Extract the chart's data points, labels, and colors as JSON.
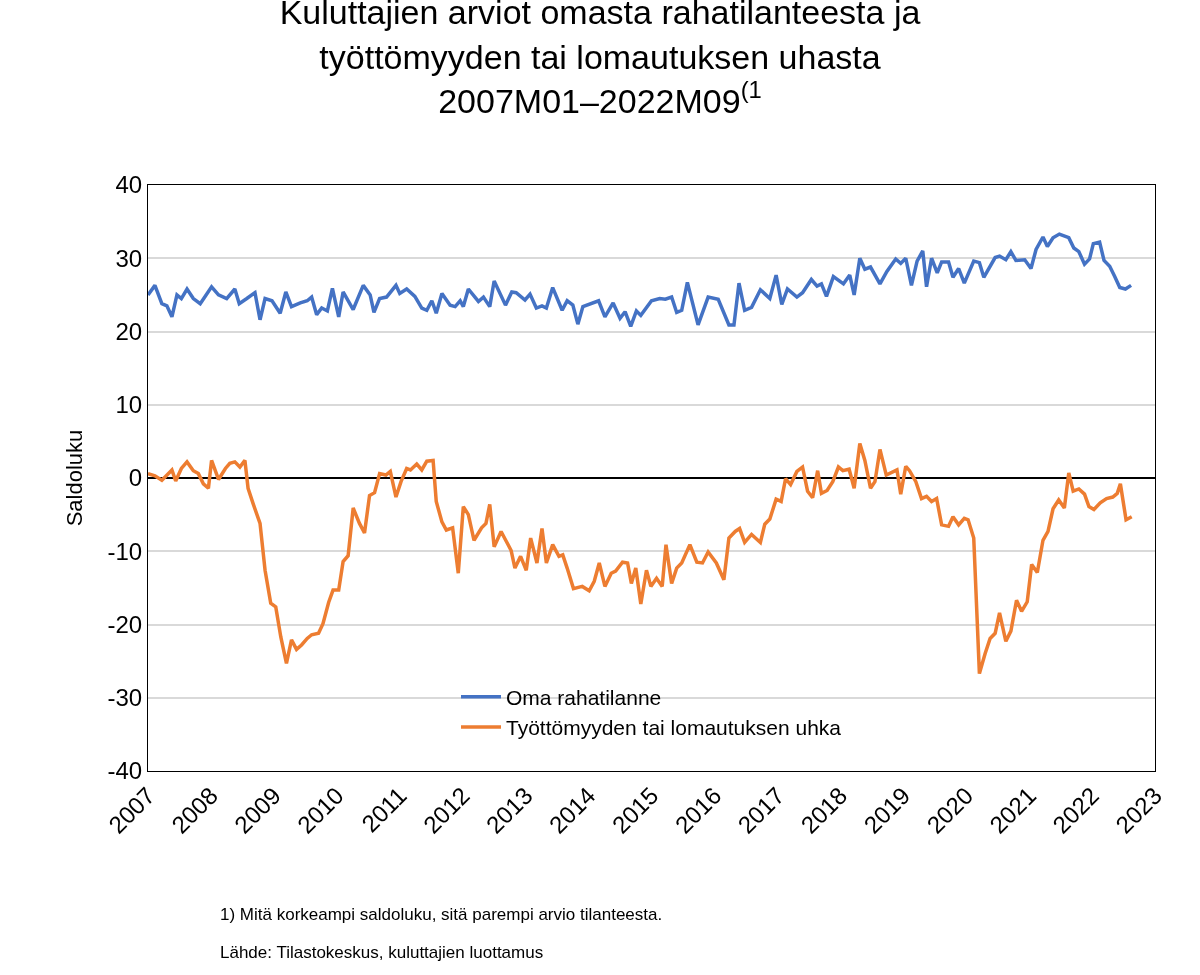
{
  "chart_data": {
    "type": "line",
    "title": "Kuluttajien arviot omasta rahatilanteesta ja\ntyöttömyyden tai lomautuksen uhasta\n2007M01–2022M09$^{(1}$",
    "ylabel": "Saldoluku",
    "xlim": [
      2007,
      2023
    ],
    "xticks": [
      2007,
      2008,
      2009,
      2010,
      2011,
      2012,
      2013,
      2014,
      2015,
      2016,
      2017,
      2018,
      2019,
      2020,
      2021,
      2022,
      2023
    ],
    "ylim": [
      -40,
      40
    ],
    "yticks": [
      -40,
      -30,
      -20,
      -10,
      0,
      10,
      20,
      30,
      40
    ],
    "grid": "y",
    "legend": "bottom",
    "series": [
      {
        "name": "Oma rahatilanne",
        "color": "#4472c4",
        "x": [
          2007.0,
          2007.11,
          2007.22,
          2007.3,
          2007.38,
          2007.46,
          2007.53,
          2007.62,
          2007.72,
          2007.83,
          2007.91,
          2008.01,
          2008.12,
          2008.25,
          2008.38,
          2008.45,
          2008.57,
          2008.7,
          2008.78,
          2008.86,
          2008.97,
          2009.1,
          2009.19,
          2009.28,
          2009.42,
          2009.53,
          2009.6,
          2009.68,
          2009.76,
          2009.85,
          2009.93,
          2010.03,
          2010.1,
          2010.26,
          2010.42,
          2010.53,
          2010.59,
          2010.68,
          2010.79,
          2010.94,
          2011.0,
          2011.11,
          2011.24,
          2011.35,
          2011.43,
          2011.51,
          2011.58,
          2011.67,
          2011.8,
          2011.88,
          2011.96,
          2012.01,
          2012.09,
          2012.25,
          2012.33,
          2012.43,
          2012.5,
          2012.68,
          2012.78,
          2012.85,
          2012.99,
          2013.07,
          2013.17,
          2013.26,
          2013.33,
          2013.43,
          2013.58,
          2013.66,
          2013.75,
          2013.83,
          2013.91,
          2014.16,
          2014.26,
          2014.39,
          2014.5,
          2014.58,
          2014.67,
          2014.76,
          2014.83,
          2015.0,
          2015.13,
          2015.22,
          2015.32,
          2015.4,
          2015.48,
          2015.57,
          2015.74,
          2015.9,
          2016.06,
          2016.23,
          2016.31,
          2016.39,
          2016.48,
          2016.59,
          2016.73,
          2016.88,
          2016.98,
          2017.07,
          2017.16,
          2017.31,
          2017.4,
          2017.54,
          2017.63,
          2017.7,
          2017.78,
          2017.89,
          2018.05,
          2018.15,
          2018.22,
          2018.31,
          2018.39,
          2018.48,
          2018.63,
          2018.74,
          2018.88,
          2018.96,
          2019.04,
          2019.13,
          2019.22,
          2019.31,
          2019.37,
          2019.45,
          2019.54,
          2019.61,
          2019.72,
          2019.79,
          2019.88,
          2019.97,
          2020.12,
          2020.21,
          2020.28,
          2020.46,
          2020.53,
          2020.63,
          2020.71,
          2020.79,
          2020.93,
          2021.03,
          2021.11,
          2021.22,
          2021.29,
          2021.38,
          2021.48,
          2021.63,
          2021.71,
          2021.79,
          2021.88,
          2021.96,
          2022.02,
          2022.12,
          2022.19,
          2022.28,
          2022.36,
          2022.44,
          2022.53,
          2022.62
        ],
        "values": [
          25.0,
          26.3,
          23.8,
          23.5,
          22.0,
          25.0,
          24.5,
          25.8,
          24.5,
          23.8,
          24.8,
          26.1,
          25.0,
          24.5,
          25.8,
          23.8,
          24.5,
          25.3,
          21.6,
          24.5,
          24.2,
          22.5,
          25.4,
          23.4,
          23.9,
          24.2,
          24.7,
          22.3,
          23.2,
          22.8,
          25.9,
          22.0,
          25.4,
          23.0,
          26.3,
          25.0,
          22.6,
          24.5,
          24.7,
          26.3,
          25.2,
          25.8,
          24.8,
          23.2,
          22.9,
          24.2,
          22.5,
          25.2,
          23.6,
          23.4,
          24.2,
          23.4,
          25.8,
          24.1,
          24.7,
          23.4,
          26.9,
          23.6,
          25.4,
          25.3,
          24.3,
          25.1,
          23.2,
          23.5,
          23.2,
          26.0,
          22.9,
          24.2,
          23.6,
          21.0,
          23.4,
          24.2,
          22.0,
          23.9,
          21.8,
          22.7,
          20.7,
          22.8,
          22.2,
          24.2,
          24.5,
          24.4,
          24.7,
          22.6,
          22.9,
          26.7,
          20.9,
          24.7,
          24.4,
          20.9,
          20.9,
          26.6,
          22.9,
          23.3,
          25.7,
          24.5,
          27.7,
          23.7,
          25.8,
          24.7,
          25.3,
          27.1,
          26.2,
          26.5,
          24.8,
          27.5,
          26.5,
          27.7,
          25.0,
          30.0,
          28.5,
          28.8,
          26.5,
          28.2,
          29.9,
          29.3,
          30.0,
          26.3,
          29.6,
          31.0,
          26.1,
          30.0,
          28.0,
          29.5,
          29.5,
          27.4,
          28.6,
          26.6,
          29.6,
          29.4,
          27.4,
          30.1,
          30.3,
          29.8,
          30.9,
          29.7,
          29.8,
          28.6,
          31.2,
          32.9,
          31.6,
          32.8,
          33.3,
          32.8,
          31.4,
          30.9,
          29.2,
          29.9,
          32.0,
          32.2,
          29.7,
          28.9,
          27.5,
          26.0,
          25.8,
          26.3
        ]
      },
      {
        "name": "Työttömyyden tai lomautuksen uhka",
        "color": "#ed7d31",
        "x": [
          2007.0,
          2007.11,
          2007.22,
          2007.38,
          2007.44,
          2007.53,
          2007.62,
          2007.72,
          2007.8,
          2007.88,
          2007.96,
          2008.01,
          2008.12,
          2008.23,
          2008.3,
          2008.38,
          2008.46,
          2008.54,
          2008.59,
          2008.67,
          2008.78,
          2008.86,
          2008.95,
          2009.03,
          2009.11,
          2009.2,
          2009.28,
          2009.36,
          2009.44,
          2009.53,
          2009.6,
          2009.71,
          2009.78,
          2009.87,
          2009.94,
          2010.03,
          2010.1,
          2010.18,
          2010.26,
          2010.36,
          2010.44,
          2010.52,
          2010.6,
          2010.68,
          2010.78,
          2010.85,
          2010.94,
          2011.02,
          2011.11,
          2011.17,
          2011.27,
          2011.35,
          2011.43,
          2011.53,
          2011.58,
          2011.67,
          2011.74,
          2011.84,
          2011.93,
          2012.01,
          2012.09,
          2012.18,
          2012.3,
          2012.37,
          2012.43,
          2012.5,
          2012.61,
          2012.69,
          2012.77,
          2012.83,
          2012.92,
          2013.01,
          2013.08,
          2013.18,
          2013.26,
          2013.33,
          2013.43,
          2013.53,
          2013.59,
          2013.66,
          2013.76,
          2013.9,
          2014.01,
          2014.09,
          2014.17,
          2014.26,
          2014.36,
          2014.43,
          2014.54,
          2014.62,
          2014.68,
          2014.75,
          2014.83,
          2014.92,
          2014.99,
          2015.08,
          2015.17,
          2015.23,
          2015.32,
          2015.4,
          2015.48,
          2015.61,
          2015.72,
          2015.81,
          2015.9,
          2016.03,
          2016.15,
          2016.23,
          2016.33,
          2016.4,
          2016.48,
          2016.59,
          2016.73,
          2016.8,
          2016.88,
          2016.98,
          2017.06,
          2017.13,
          2017.21,
          2017.31,
          2017.4,
          2017.48,
          2017.56,
          2017.64,
          2017.7,
          2017.79,
          2017.88,
          2017.97,
          2018.04,
          2018.14,
          2018.22,
          2018.31,
          2018.39,
          2018.48,
          2018.55,
          2018.63,
          2018.73,
          2018.9,
          2018.96,
          2019.04,
          2019.1,
          2019.2,
          2019.29,
          2019.37,
          2019.45,
          2019.53,
          2019.61,
          2019.72,
          2019.79,
          2019.88,
          2019.97,
          2020.03,
          2020.12,
          2020.21,
          2020.3,
          2020.38,
          2020.46,
          2020.53,
          2020.63,
          2020.71,
          2020.8,
          2020.88,
          2020.97,
          2021.04,
          2021.13,
          2021.22,
          2021.3,
          2021.38,
          2021.47,
          2021.56,
          2021.63,
          2021.7,
          2021.79,
          2021.88,
          2021.95,
          2022.03,
          2022.13,
          2022.23,
          2022.33,
          2022.4,
          2022.45,
          2022.54,
          2022.63
        ],
        "values": [
          0.6,
          0.3,
          -0.3,
          1.1,
          -0.4,
          1.3,
          2.2,
          1.0,
          0.6,
          -0.8,
          -1.4,
          2.4,
          -0.2,
          1.3,
          2.0,
          2.2,
          1.5,
          2.4,
          -1.4,
          -3.5,
          -6.2,
          -12.6,
          -17.1,
          -17.6,
          -21.7,
          -25.3,
          -22.1,
          -23.4,
          -22.8,
          -21.9,
          -21.4,
          -21.2,
          -19.9,
          -17.0,
          -15.3,
          -15.3,
          -11.4,
          -10.6,
          -4.1,
          -6.2,
          -7.5,
          -2.4,
          -2.0,
          0.6,
          0.4,
          0.9,
          -2.6,
          -0.5,
          1.3,
          1.1,
          1.9,
          1.1,
          2.3,
          2.4,
          -3.2,
          -6.0,
          -7.1,
          -6.8,
          -13.0,
          -3.9,
          -5.0,
          -8.5,
          -6.8,
          -6.2,
          -3.6,
          -9.4,
          -7.3,
          -8.6,
          -9.9,
          -12.3,
          -10.7,
          -12.6,
          -8.2,
          -11.6,
          -6.9,
          -11.6,
          -9.1,
          -10.7,
          -10.5,
          -12.3,
          -15.1,
          -14.8,
          -15.4,
          -14.1,
          -11.6,
          -14.8,
          -13.0,
          -12.7,
          -11.5,
          -11.6,
          -14.4,
          -12.3,
          -17.2,
          -12.6,
          -14.8,
          -13.7,
          -14.8,
          -9.1,
          -14.4,
          -12.3,
          -11.6,
          -9.1,
          -11.5,
          -11.6,
          -10.1,
          -11.6,
          -13.9,
          -8.2,
          -7.3,
          -6.9,
          -8.8,
          -7.7,
          -8.8,
          -6.3,
          -5.6,
          -2.9,
          -3.2,
          -0.1,
          -0.9,
          0.9,
          1.5,
          -1.8,
          -2.7,
          1.0,
          -2.1,
          -1.7,
          -0.5,
          1.5,
          1.0,
          1.2,
          -1.4,
          4.7,
          2.4,
          -1.4,
          -0.5,
          3.9,
          0.4,
          1.1,
          -2.2,
          1.6,
          1.0,
          -0.5,
          -2.8,
          -2.5,
          -3.2,
          -2.8,
          -6.4,
          -6.6,
          -5.3,
          -6.4,
          -5.5,
          -5.7,
          -8.2,
          -26.7,
          -24.0,
          -21.9,
          -21.2,
          -18.4,
          -22.3,
          -20.9,
          -16.7,
          -18.2,
          -16.9,
          -11.8,
          -12.9,
          -8.5,
          -7.3,
          -4.2,
          -3.0,
          -4.1,
          0.7,
          -1.8,
          -1.5,
          -2.2,
          -3.9,
          -4.3,
          -3.4,
          -2.8,
          -2.6,
          -2.1,
          -0.8,
          -5.7,
          -5.3
        ]
      }
    ],
    "annotations": [
      "1) Mitä korkeampi saldoluku, sitä parempi arvio tilanteesta.",
      "Lähde: Tilastokeskus, kuluttajien luottamus"
    ]
  }
}
